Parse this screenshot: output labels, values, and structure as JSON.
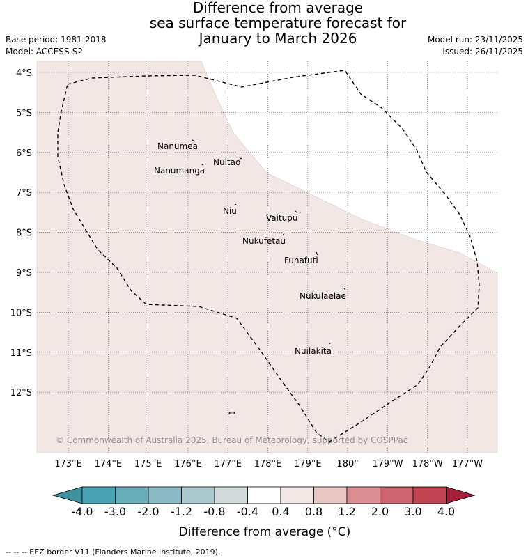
{
  "title": {
    "lines": [
      "Difference from average",
      "sea surface temperature forecast for",
      "January to March 2026"
    ]
  },
  "meta": {
    "base_period": "Base period: 1981-2018",
    "model": "Model: ACCESS-S2",
    "model_run": "Model run: 23/11/2025",
    "issued": "Issued: 26/11/2025"
  },
  "map": {
    "lat_labels": [
      "4°S",
      "5°S",
      "6°S",
      "7°S",
      "8°S",
      "9°S",
      "10°S",
      "11°S",
      "12°S"
    ],
    "lon_labels": [
      "173°E",
      "174°E",
      "175°E",
      "176°E",
      "177°E",
      "178°E",
      "179°E",
      "180°",
      "179°W",
      "178°W",
      "177°W"
    ],
    "places": [
      "Nanumea",
      "Nuitao",
      "Nanumanga",
      "Niu",
      "Vaitupu",
      "Nukufetau",
      "Funafuti",
      "Nukulaelae",
      "Nuilakita"
    ],
    "copyright": "© Commonwealth of Australia 2025, Bureau of Meteorology, supported by COSPPac",
    "anomaly_fill_color": "#f3e7e6",
    "eez_color": "#000000"
  },
  "colorbar": {
    "ticks": [
      "-4.0",
      "-3.0",
      "-2.0",
      "-1.2",
      "-0.8",
      "-0.4",
      "0.4",
      "0.8",
      "1.2",
      "2.0",
      "3.0",
      "4.0"
    ],
    "colors": [
      "#3e8f9e",
      "#4aa3b5",
      "#6aaebc",
      "#8bbac4",
      "#a9c9cd",
      "#d2dadb",
      "#ffffff",
      "#f3e7e6",
      "#e8c6c4",
      "#db8f95",
      "#cd6670",
      "#c24453",
      "#a51f3a"
    ],
    "title": "Difference from average ($^\\circ$C)",
    "title_display": "Difference from average (°C)"
  },
  "footnote": "--  --  -- EEZ border V11 (Flanders Marine Institute, 2019)."
}
